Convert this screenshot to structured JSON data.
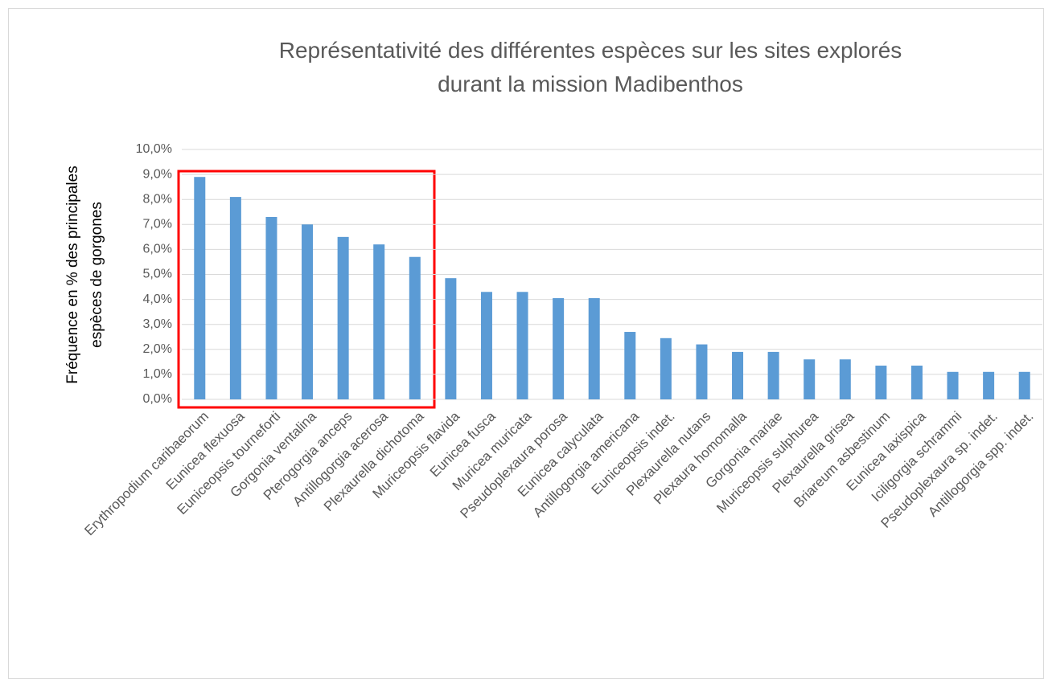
{
  "chart_data": {
    "type": "bar",
    "title": [
      "Représentativité des différentes espèces sur les sites explorés",
      "durant la mission Madibenthos"
    ],
    "y_label": [
      "Fréquence en % des principales",
      "espèces de gorgones"
    ],
    "categories": [
      "Erythropodium caribaeorum",
      "Eunicea flexuosa",
      "Euniceopsis tourneforti",
      "Gorgonia ventalina",
      "Pterogorgia anceps",
      "Antillogorgia acerosa",
      "Plexaurella dichotoma",
      "Muriceopsis flavida",
      "Eunicea fusca",
      "Muricea muricata",
      "Pseudoplexaura porosa",
      "Eunicea calyculata",
      "Antillogorgia americana",
      "Euniceopsis indet.",
      "Plexaurella nutans",
      "Plexaura homomalla",
      "Gorgonia mariae",
      "Muriceopsis sulphurea",
      "Plexaurella grisea",
      "Briareum asbestinum",
      "Eunicea laxispica",
      "Iciligorgia schrammi",
      "Pseudoplexaura sp. indet.",
      "Antillogorgia spp. indet."
    ],
    "values": [
      8.9,
      8.1,
      7.3,
      7.0,
      6.5,
      6.2,
      5.7,
      4.85,
      4.3,
      4.3,
      4.05,
      4.05,
      2.7,
      2.45,
      2.2,
      1.9,
      1.9,
      1.6,
      1.6,
      1.35,
      1.35,
      1.1,
      1.1,
      1.1
    ],
    "color": "#5b9bd5",
    "ylim": [
      0,
      10
    ],
    "yticks": [
      {
        "value": 0,
        "label": "0,0%"
      },
      {
        "value": 1,
        "label": "1,0%"
      },
      {
        "value": 2,
        "label": "2,0%"
      },
      {
        "value": 3,
        "label": "3,0%"
      },
      {
        "value": 4,
        "label": "4,0%"
      },
      {
        "value": 5,
        "label": "5,0%"
      },
      {
        "value": 6,
        "label": "6,0%"
      },
      {
        "value": 7,
        "label": "7,0%"
      },
      {
        "value": 8,
        "label": "8,0%"
      },
      {
        "value": 9,
        "label": "9,0%"
      },
      {
        "value": 10,
        "label": "10,0%"
      }
    ],
    "grid": true
  }
}
